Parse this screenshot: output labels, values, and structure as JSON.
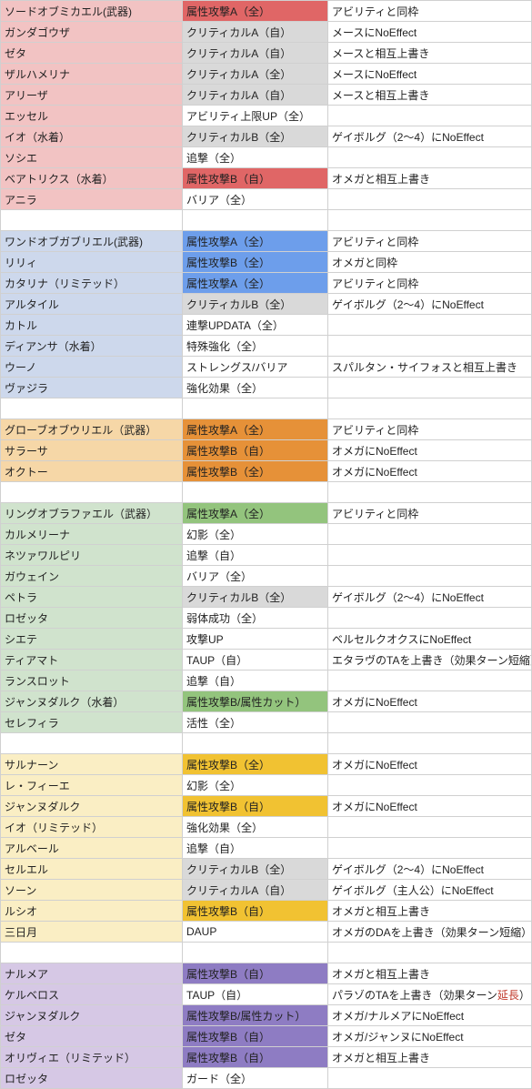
{
  "colors": {
    "fire_name": "#f2c3c3",
    "fire_hi": "#e06666",
    "gray": "#d9d9d9",
    "water_name": "#cdd8ec",
    "water_hi": "#6d9eeb",
    "earth_name": "#f6d7a7",
    "earth_hi": "#e69138",
    "wind_name": "#d0e3cd",
    "wind_hi": "#93c47d",
    "light_name": "#faeec4",
    "light_hi": "#f1c232",
    "dark_name": "#d6c8e5",
    "dark_hi": "#8e7cc3",
    "blank": "#ffffff"
  },
  "rows": [
    {
      "n": "ソードオブミカエル(武器)",
      "s": "属性攻撃A（全）",
      "e": "アビリティと同枠",
      "nc": "fire_name",
      "sc": "fire_hi"
    },
    {
      "n": "ガンダゴウザ",
      "s": "クリティカルA（自）",
      "e": "メースにNoEffect",
      "nc": "fire_name",
      "sc": "gray"
    },
    {
      "n": "ゼタ",
      "s": "クリティカルA（自）",
      "e": "メースと相互上書き",
      "nc": "fire_name",
      "sc": "gray"
    },
    {
      "n": "ザルハメリナ",
      "s": "クリティカルA（全）",
      "e": "メースにNoEffect",
      "nc": "fire_name",
      "sc": "gray"
    },
    {
      "n": "アリーザ",
      "s": "クリティカルA（自）",
      "e": "メースと相互上書き",
      "nc": "fire_name",
      "sc": "gray"
    },
    {
      "n": "エッセル",
      "s": "アビリティ上限UP（全）",
      "e": "",
      "nc": "fire_name",
      "sc": "blank"
    },
    {
      "n": "イオ（水着）",
      "s": "クリティカルB（全）",
      "e": "ゲイボルグ（2～4）にNoEffect",
      "nc": "fire_name",
      "sc": "gray"
    },
    {
      "n": "ソシエ",
      "s": "追撃（全）",
      "e": "",
      "nc": "fire_name",
      "sc": "blank"
    },
    {
      "n": "ベアトリクス（水着）",
      "s": "属性攻撃B（自）",
      "e": "オメガと相互上書き",
      "nc": "fire_name",
      "sc": "fire_hi"
    },
    {
      "n": "アニラ",
      "s": "バリア（全）",
      "e": "",
      "nc": "fire_name",
      "sc": "blank"
    },
    {
      "blank": true
    },
    {
      "n": "ワンドオブガブリエル(武器)",
      "s": "属性攻撃A（全）",
      "e": "アビリティと同枠",
      "nc": "water_name",
      "sc": "water_hi"
    },
    {
      "n": "リリィ",
      "s": "属性攻撃B（全）",
      "e": "オメガと同枠",
      "nc": "water_name",
      "sc": "water_hi"
    },
    {
      "n": "カタリナ（リミテッド）",
      "s": "属性攻撃A（全）",
      "e": "アビリティと同枠",
      "nc": "water_name",
      "sc": "water_hi"
    },
    {
      "n": "アルタイル",
      "s": "クリティカルB（全）",
      "e": "ゲイボルグ（2～4）にNoEffect",
      "nc": "water_name",
      "sc": "gray"
    },
    {
      "n": "カトル",
      "s": "連撃UPDATA（全）",
      "e": "",
      "nc": "water_name",
      "sc": "blank"
    },
    {
      "n": "ディアンサ（水着）",
      "s": "特殊強化（全）",
      "e": "",
      "nc": "water_name",
      "sc": "blank"
    },
    {
      "n": "ウーノ",
      "s": "ストレングス/バリア",
      "e": "スパルタン・サイフォスと相互上書き",
      "nc": "water_name",
      "sc": "blank"
    },
    {
      "n": "ヴァジラ",
      "s": "強化効果（全）",
      "e": "",
      "nc": "water_name",
      "sc": "blank"
    },
    {
      "blank": true
    },
    {
      "n": "グローブオブウリエル（武器）",
      "s": "属性攻撃A（全）",
      "e": "アビリティと同枠",
      "nc": "earth_name",
      "sc": "earth_hi"
    },
    {
      "n": "サラーサ",
      "s": "属性攻撃B（自）",
      "e": "オメガにNoEffect",
      "nc": "earth_name",
      "sc": "earth_hi"
    },
    {
      "n": "オクトー",
      "s": "属性攻撃B（全）",
      "e": "オメガにNoEffect",
      "nc": "earth_name",
      "sc": "earth_hi"
    },
    {
      "blank": true
    },
    {
      "n": "リングオブラファエル（武器）",
      "s": "属性攻撃A（全）",
      "e": "アビリティと同枠",
      "nc": "wind_name",
      "sc": "wind_hi"
    },
    {
      "n": "カルメリーナ",
      "s": "幻影（全）",
      "e": "",
      "nc": "wind_name",
      "sc": "blank"
    },
    {
      "n": "ネツァワルピリ",
      "s": "追撃（自）",
      "e": "",
      "nc": "wind_name",
      "sc": "blank"
    },
    {
      "n": "ガウェイン",
      "s": "バリア（全）",
      "e": "",
      "nc": "wind_name",
      "sc": "blank"
    },
    {
      "n": "ペトラ",
      "s": "クリティカルB（全）",
      "e": "ゲイボルグ（2～4）にNoEffect",
      "nc": "wind_name",
      "sc": "gray"
    },
    {
      "n": "ロゼッタ",
      "s": "弱体成功（全）",
      "e": "",
      "nc": "wind_name",
      "sc": "blank"
    },
    {
      "n": "シエテ",
      "s": "攻撃UP",
      "e": "ベルセルクオクスにNoEffect",
      "nc": "wind_name",
      "sc": "blank"
    },
    {
      "n": "ティアマト",
      "s": "TAUP（自）",
      "e": "エタラヴのTAを上書き（効果ターン短縮）",
      "nc": "wind_name",
      "sc": "blank"
    },
    {
      "n": "ランスロット",
      "s": "追撃（自）",
      "e": "",
      "nc": "wind_name",
      "sc": "blank"
    },
    {
      "n": "ジャンヌダルク（水着）",
      "s": "属性攻撃B/属性カット）",
      "e": "オメガにNoEffect",
      "nc": "wind_name",
      "sc": "wind_hi"
    },
    {
      "n": "セレフィラ",
      "s": "活性（全）",
      "e": "",
      "nc": "wind_name",
      "sc": "blank"
    },
    {
      "blank": true
    },
    {
      "n": "サルナーン",
      "s": "属性攻撃B（全）",
      "e": "オメガにNoEffect",
      "nc": "light_name",
      "sc": "light_hi"
    },
    {
      "n": "レ・フィーエ",
      "s": "幻影（全）",
      "e": "",
      "nc": "light_name",
      "sc": "blank"
    },
    {
      "n": "ジャンヌダルク",
      "s": "属性攻撃B（自）",
      "e": "オメガにNoEffect",
      "nc": "light_name",
      "sc": "light_hi"
    },
    {
      "n": "イオ（リミテッド）",
      "s": "強化効果（全）",
      "e": "",
      "nc": "light_name",
      "sc": "blank"
    },
    {
      "n": "アルベール",
      "s": "追撃（自）",
      "e": "",
      "nc": "light_name",
      "sc": "blank"
    },
    {
      "n": "セルエル",
      "s": "クリティカルB（全）",
      "e": "ゲイボルグ（2～4）にNoEffect",
      "nc": "light_name",
      "sc": "gray"
    },
    {
      "n": "ソーン",
      "s": "クリティカルA（自）",
      "e": "ゲイボルグ（主人公）にNoEffect",
      "nc": "light_name",
      "sc": "gray"
    },
    {
      "n": "ルシオ",
      "s": "属性攻撃B（自）",
      "e": "オメガと相互上書き",
      "nc": "light_name",
      "sc": "light_hi"
    },
    {
      "n": "三日月",
      "s": "DAUP",
      "e": "オメガのDAを上書き（効果ターン短縮）",
      "nc": "light_name",
      "sc": "blank"
    },
    {
      "blank": true
    },
    {
      "n": "ナルメア",
      "s": "属性攻撃B（自）",
      "e": "オメガと相互上書き",
      "nc": "dark_name",
      "sc": "dark_hi"
    },
    {
      "n": "ケルベロス",
      "s": "TAUP（自）",
      "e": "",
      "nc": "dark_name",
      "sc": "blank",
      "eHtml": "パラゾのTAを上書き（効果ターン<span class='emph'>延長</span>）"
    },
    {
      "n": "ジャンヌダルク",
      "s": "属性攻撃B/属性カット）",
      "e": "オメガ/ナルメアにNoEffect",
      "nc": "dark_name",
      "sc": "dark_hi"
    },
    {
      "n": "ゼタ",
      "s": "属性攻撃B（自）",
      "e": "オメガ/ジャンヌにNoEffect",
      "nc": "dark_name",
      "sc": "dark_hi"
    },
    {
      "n": "オリヴィエ（リミテッド）",
      "s": "属性攻撃B（自）",
      "e": "オメガと相互上書き",
      "nc": "dark_name",
      "sc": "dark_hi"
    },
    {
      "n": "ロゼッタ",
      "s": "ガード（全）",
      "e": "",
      "nc": "dark_name",
      "sc": "blank"
    }
  ]
}
